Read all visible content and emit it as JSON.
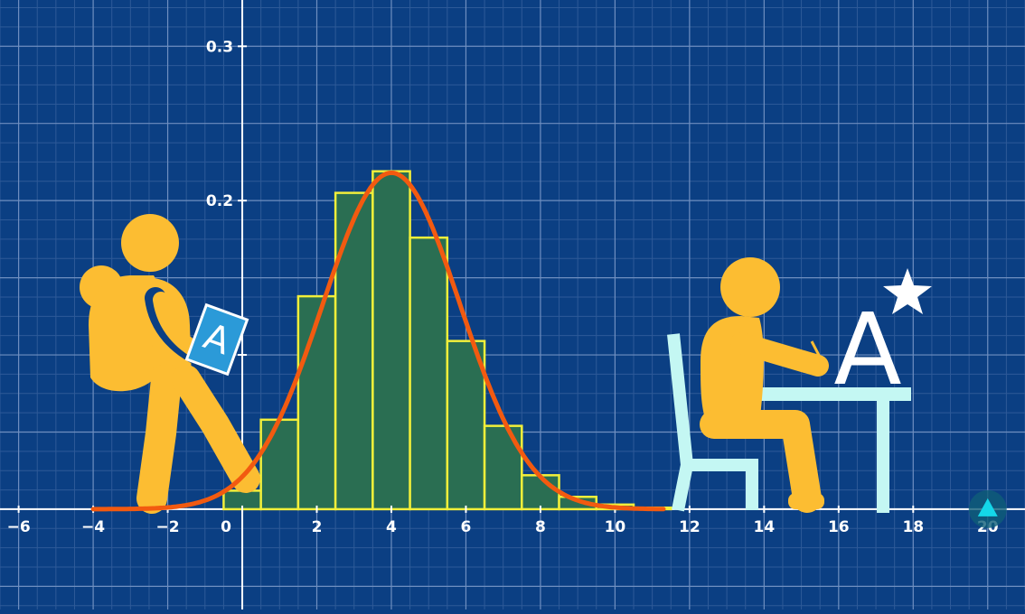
{
  "chart_data": {
    "type": "bar",
    "title": "",
    "xlabel": "",
    "ylabel": "",
    "xlim": [
      -6.5,
      21
    ],
    "ylim": [
      -0.065,
      0.33
    ],
    "x_ticks": [
      -6,
      -4,
      -2,
      0,
      2,
      4,
      6,
      8,
      10,
      12,
      14,
      16,
      18,
      20
    ],
    "x_tick_labels": [
      "−6",
      "−4",
      "−2",
      "0",
      "2",
      "4",
      "6",
      "8",
      "10",
      "12",
      "14",
      "16",
      "18",
      "20"
    ],
    "y_ticks": [
      0.1,
      0.2,
      0.3
    ],
    "y_tick_labels": [
      "",
      "0.2",
      "0.3"
    ],
    "grid": true,
    "bins": [
      {
        "x0": -0.5,
        "x1": 0.5,
        "value": 0.012
      },
      {
        "x0": 0.5,
        "x1": 1.5,
        "value": 0.058
      },
      {
        "x0": 1.5,
        "x1": 2.5,
        "value": 0.138
      },
      {
        "x0": 2.5,
        "x1": 3.5,
        "value": 0.205
      },
      {
        "x0": 3.5,
        "x1": 4.5,
        "value": 0.219
      },
      {
        "x0": 4.5,
        "x1": 5.5,
        "value": 0.176
      },
      {
        "x0": 5.5,
        "x1": 6.5,
        "value": 0.109
      },
      {
        "x0": 6.5,
        "x1": 7.5,
        "value": 0.054
      },
      {
        "x0": 7.5,
        "x1": 8.5,
        "value": 0.022
      },
      {
        "x0": 8.5,
        "x1": 9.5,
        "value": 0.008
      },
      {
        "x0": 9.5,
        "x1": 10.5,
        "value": 0.003
      },
      {
        "x0": 10.5,
        "x1": 11.5,
        "value": 0.001
      }
    ],
    "curve": {
      "type": "normal",
      "mean": 4.0,
      "sd": 1.85,
      "peak": 0.218,
      "x_range": [
        -4,
        11.3
      ]
    },
    "marker": {
      "x": 20,
      "y": 0
    }
  },
  "illustration": {
    "left_figure": "student-walking-with-backpack-icon",
    "left_book_letter": "A",
    "right_figure": "student-writing-at-desk-icon",
    "right_grade_letter": "A",
    "right_grade_star": "star-icon"
  },
  "colors": {
    "background": "#0b3f83",
    "grid_major": "#6f8fc0",
    "grid_minor": "#2e5a98",
    "bar_fill": "#2a6e52",
    "bar_stroke": "#f2ef3a",
    "curve": "#f25a10",
    "figure": "#fcbd32",
    "chair_desk": "#c4f7f3",
    "book": "#2b9ad8",
    "marker": "#14d6e8",
    "marker_halo": "#0f5e78"
  }
}
